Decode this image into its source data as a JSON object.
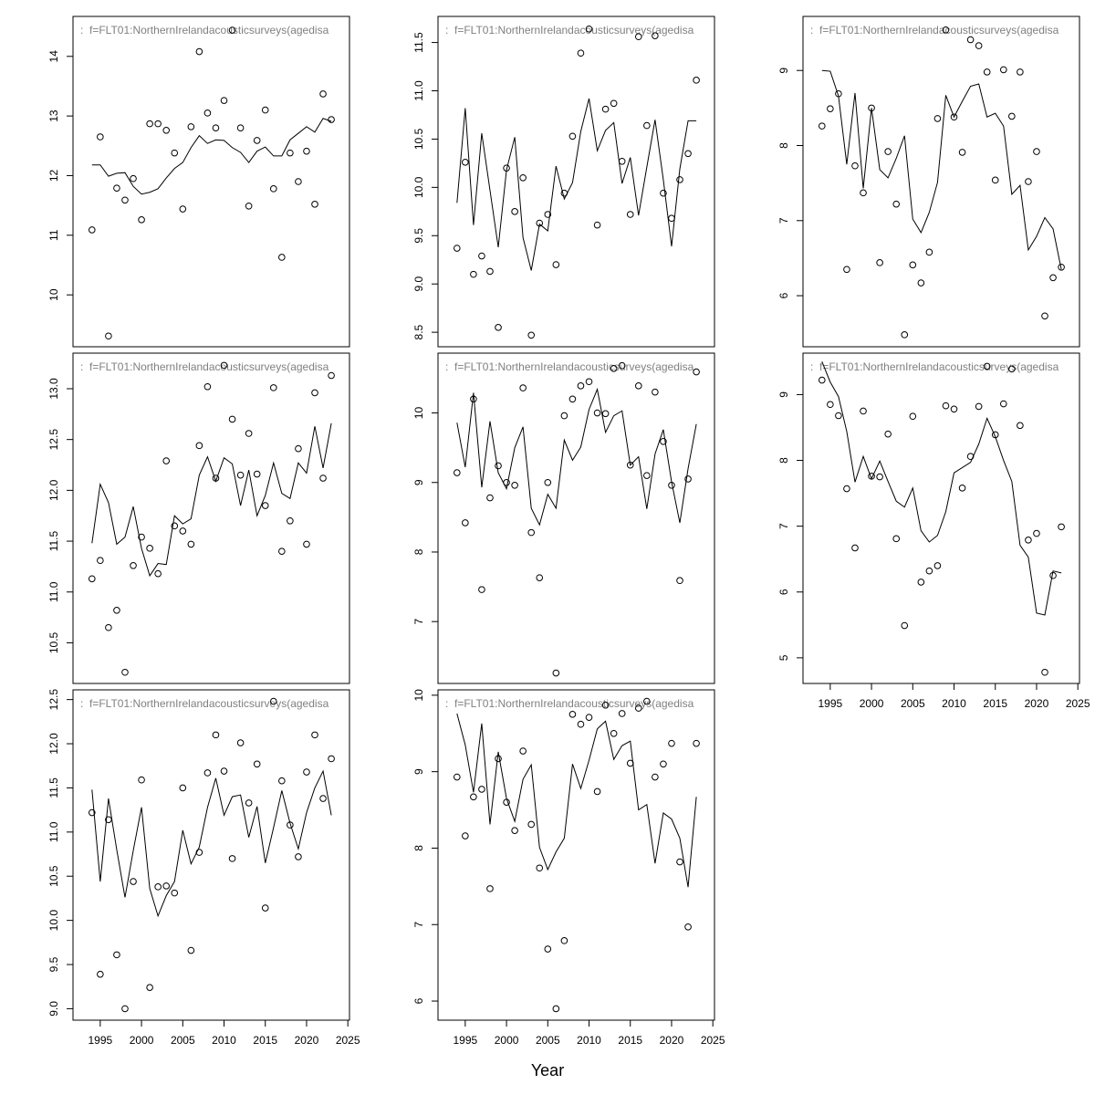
{
  "xlabel": "Year",
  "chart_data": [
    {
      "type": "line",
      "title": ":  f=FLT01:NorthernIrelandacousticsurveys(agedisa",
      "x": [
        1994,
        1995,
        1996,
        1997,
        1998,
        1999,
        2000,
        2001,
        2002,
        2003,
        2004,
        2005,
        2006,
        2007,
        2008,
        2009,
        2010,
        2011,
        2012,
        2013,
        2014,
        2015,
        2016,
        2017,
        2018,
        2019,
        2020,
        2021,
        2022,
        2023
      ],
      "xlim": [
        1991.7,
        2025.2
      ],
      "ylim": [
        9.13,
        14.67
      ],
      "yticks": [
        10,
        11,
        12,
        13,
        14
      ],
      "series": [
        {
          "style": "line",
          "color": "#000000",
          "values": [
            12.18,
            12.18,
            11.99,
            12.04,
            12.05,
            11.82,
            11.69,
            11.72,
            11.78,
            11.96,
            12.12,
            12.22,
            12.47,
            12.67,
            12.54,
            12.6,
            12.59,
            12.47,
            12.39,
            12.22,
            12.41,
            12.48,
            12.33,
            12.33,
            12.6,
            12.71,
            12.82,
            12.73,
            12.96,
            12.91
          ]
        },
        {
          "style": "points",
          "color": "#000000",
          "values": [
            11.09,
            12.65,
            9.31,
            11.79,
            11.59,
            11.95,
            11.26,
            12.87,
            12.87,
            12.76,
            12.38,
            11.44,
            12.82,
            14.08,
            13.05,
            12.8,
            13.26,
            14.44,
            12.8,
            11.49,
            12.59,
            13.1,
            11.78,
            10.63,
            12.38,
            11.9,
            12.41,
            11.52,
            13.37,
            12.94
          ]
        }
      ]
    },
    {
      "type": "line",
      "title": ":  f=FLT01:NorthernIrelandacousticsurveys(agedisa",
      "x": [
        1994,
        1995,
        1996,
        1997,
        1998,
        1999,
        2000,
        2001,
        2002,
        2003,
        2004,
        2005,
        2006,
        2007,
        2008,
        2009,
        2010,
        2011,
        2012,
        2013,
        2014,
        2015,
        2016,
        2017,
        2018,
        2019,
        2020,
        2021,
        2022,
        2023
      ],
      "xlim": [
        1991.7,
        2025.2
      ],
      "ylim": [
        8.35,
        11.77
      ],
      "yticks": [
        8.5,
        {
          "value": 9,
          "label": "9.0"
        },
        9.5,
        {
          "value": 10,
          "label": "10.0"
        },
        10.5,
        {
          "value": 11,
          "label": "11.0"
        },
        11.5
      ],
      "series": [
        {
          "style": "line",
          "color": "#000000",
          "values": [
            9.84,
            10.82,
            9.61,
            10.56,
            9.97,
            9.38,
            10.18,
            10.52,
            9.48,
            9.14,
            9.62,
            9.55,
            10.22,
            9.88,
            10.05,
            10.58,
            10.92,
            10.38,
            10.59,
            10.67,
            10.04,
            10.31,
            9.71,
            10.21,
            10.7,
            10.08,
            9.39,
            10.19,
            10.69,
            10.69
          ]
        },
        {
          "style": "points",
          "color": "#000000",
          "values": [
            9.37,
            10.26,
            9.1,
            9.29,
            9.13,
            8.55,
            10.2,
            9.75,
            10.1,
            8.47,
            9.63,
            9.72,
            9.2,
            9.94,
            10.53,
            11.39,
            11.64,
            9.61,
            10.81,
            10.87,
            10.27,
            9.72,
            11.56,
            10.64,
            11.57,
            9.94,
            9.68,
            10.08,
            10.35,
            11.11
          ]
        }
      ]
    },
    {
      "type": "line",
      "title": ":  f=FLT01:NorthernIrelandacousticsurveys(agedisa",
      "x": [
        1994,
        1995,
        1996,
        1997,
        1998,
        1999,
        2000,
        2001,
        2002,
        2003,
        2004,
        2005,
        2006,
        2007,
        2008,
        2009,
        2010,
        2011,
        2012,
        2013,
        2014,
        2015,
        2016,
        2017,
        2018,
        2019,
        2020,
        2021,
        2022,
        2023
      ],
      "xlim": [
        1991.7,
        2025.2
      ],
      "ylim": [
        5.32,
        9.72
      ],
      "yticks": [
        6,
        7,
        8,
        9
      ],
      "series": [
        {
          "style": "line",
          "color": "#000000",
          "values": [
            9.0,
            8.99,
            8.66,
            7.75,
            8.7,
            7.43,
            8.5,
            7.68,
            7.57,
            7.83,
            8.13,
            7.02,
            6.84,
            7.11,
            7.51,
            8.67,
            8.38,
            8.59,
            8.79,
            8.82,
            8.38,
            8.43,
            8.26,
            7.35,
            7.47,
            6.61,
            6.79,
            7.04,
            6.89,
            6.35
          ]
        },
        {
          "style": "points",
          "color": "#000000",
          "values": [
            8.26,
            8.49,
            8.69,
            6.35,
            7.73,
            7.37,
            8.5,
            6.44,
            7.92,
            7.22,
            5.48,
            6.41,
            6.17,
            6.58,
            8.36,
            9.54,
            8.38,
            7.91,
            9.41,
            9.33,
            8.98,
            7.54,
            9.01,
            8.39,
            8.98,
            7.52,
            7.92,
            5.73,
            6.24,
            6.38
          ]
        }
      ]
    },
    {
      "type": "line",
      "title": ":  f=FLT01:NorthernIrelandacousticsurveys(agedisa",
      "x": [
        1994,
        1995,
        1996,
        1997,
        1998,
        1999,
        2000,
        2001,
        2002,
        2003,
        2004,
        2005,
        2006,
        2007,
        2008,
        2009,
        2010,
        2011,
        2012,
        2013,
        2014,
        2015,
        2016,
        2017,
        2018,
        2019,
        2020,
        2021,
        2022,
        2023
      ],
      "xlim": [
        1991.7,
        2025.2
      ],
      "ylim": [
        10.1,
        13.35
      ],
      "yticks": [
        10.5,
        {
          "value": 11,
          "label": "11.0"
        },
        11.5,
        {
          "value": 12,
          "label": "12.0"
        },
        12.5,
        {
          "value": 13,
          "label": "13.0"
        }
      ],
      "series": [
        {
          "style": "line",
          "color": "#000000",
          "values": [
            11.48,
            12.06,
            11.88,
            11.47,
            11.54,
            11.84,
            11.43,
            11.16,
            11.28,
            11.27,
            11.75,
            11.67,
            11.72,
            12.15,
            12.33,
            12.09,
            12.32,
            12.26,
            11.85,
            12.2,
            11.75,
            11.95,
            12.27,
            11.97,
            11.92,
            12.27,
            12.17,
            12.63,
            12.22,
            12.66
          ]
        },
        {
          "style": "points",
          "color": "#000000",
          "values": [
            11.13,
            11.31,
            10.65,
            10.82,
            10.21,
            11.26,
            11.54,
            11.43,
            11.18,
            12.29,
            11.65,
            11.6,
            11.47,
            12.44,
            13.02,
            12.12,
            13.23,
            12.7,
            12.15,
            12.56,
            12.16,
            11.85,
            13.01,
            11.4,
            11.7,
            12.41,
            11.47,
            12.96,
            12.12,
            13.13
          ]
        }
      ]
    },
    {
      "type": "line",
      "title": ":  f=FLT01:NorthernIrelandacousticsurveys(agedisa",
      "x": [
        1994,
        1995,
        1996,
        1997,
        1998,
        1999,
        2000,
        2001,
        2002,
        2003,
        2004,
        2005,
        2006,
        2007,
        2008,
        2009,
        2010,
        2011,
        2012,
        2013,
        2014,
        2015,
        2016,
        2017,
        2018,
        2019,
        2020,
        2021,
        2022,
        2023
      ],
      "xlim": [
        1991.7,
        2025.2
      ],
      "ylim": [
        6.11,
        10.86
      ],
      "yticks": [
        7,
        8,
        9,
        10
      ],
      "series": [
        {
          "style": "line",
          "color": "#000000",
          "values": [
            9.86,
            9.22,
            10.29,
            8.93,
            9.88,
            9.14,
            8.91,
            9.5,
            9.8,
            8.63,
            8.39,
            8.83,
            8.63,
            9.61,
            9.32,
            9.51,
            10.05,
            10.34,
            9.72,
            9.96,
            10.03,
            9.25,
            9.37,
            8.62,
            9.41,
            9.76,
            9.01,
            8.42,
            9.2,
            9.84
          ]
        },
        {
          "style": "points",
          "color": "#000000",
          "values": [
            9.14,
            8.42,
            10.2,
            7.46,
            8.78,
            9.24,
            9.0,
            8.96,
            10.36,
            8.28,
            7.63,
            9.0,
            6.26,
            9.96,
            10.2,
            10.39,
            10.45,
            10.0,
            9.99,
            10.64,
            10.68,
            9.25,
            10.39,
            9.1,
            10.3,
            9.59,
            8.96,
            7.59,
            9.05,
            10.59
          ]
        }
      ]
    },
    {
      "type": "line",
      "title": ":  f=FLT01:NorthernIrelandacousticsurveys(agedisa",
      "x": [
        1994,
        1995,
        1996,
        1997,
        1998,
        1999,
        2000,
        2001,
        2002,
        2003,
        2004,
        2005,
        2006,
        2007,
        2008,
        2009,
        2010,
        2011,
        2012,
        2013,
        2014,
        2015,
        2016,
        2017,
        2018,
        2019,
        2020,
        2021,
        2022,
        2023
      ],
      "xlim": [
        1991.7,
        2025.2
      ],
      "xticks": [
        1995,
        2000,
        2005,
        2010,
        2015,
        2020,
        2025
      ],
      "ylim": [
        4.61,
        9.63
      ],
      "yticks": [
        5,
        6,
        7,
        8,
        9
      ],
      "series": [
        {
          "style": "line",
          "color": "#000000",
          "values": [
            9.5,
            9.19,
            8.97,
            8.44,
            7.67,
            8.06,
            7.72,
            7.99,
            7.68,
            7.38,
            7.29,
            7.58,
            6.93,
            6.76,
            6.86,
            7.22,
            7.81,
            7.89,
            7.97,
            8.25,
            8.64,
            8.36,
            8.0,
            7.68,
            6.71,
            6.53,
            5.68,
            5.65,
            6.32,
            6.29
          ]
        },
        {
          "style": "points",
          "color": "#000000",
          "values": [
            9.22,
            8.85,
            8.68,
            7.57,
            6.67,
            8.75,
            7.76,
            7.75,
            8.4,
            6.81,
            5.49,
            8.67,
            6.15,
            6.32,
            6.4,
            8.83,
            8.78,
            7.58,
            8.06,
            8.82,
            9.43,
            8.39,
            8.86,
            9.39,
            8.53,
            6.79,
            6.89,
            4.78,
            6.25,
            6.99
          ]
        }
      ]
    },
    {
      "type": "line",
      "title": ":  f=FLT01:NorthernIrelandacousticsurveys(agedisa",
      "x": [
        1994,
        1995,
        1996,
        1997,
        1998,
        1999,
        2000,
        2001,
        2002,
        2003,
        2004,
        2005,
        2006,
        2007,
        2008,
        2009,
        2010,
        2011,
        2012,
        2013,
        2014,
        2015,
        2016,
        2017,
        2018,
        2019,
        2020,
        2021,
        2022,
        2023
      ],
      "xlim": [
        1991.7,
        2025.2
      ],
      "xticks": [
        1995,
        2000,
        2005,
        2010,
        2015,
        2020,
        2025
      ],
      "ylim": [
        8.87,
        12.61
      ],
      "yticks": [
        {
          "value": 9,
          "label": "9.0"
        },
        9.5,
        {
          "value": 10,
          "label": "10.0"
        },
        10.5,
        {
          "value": 11,
          "label": "11.0"
        },
        11.5,
        {
          "value": 12,
          "label": "12.0"
        },
        12.5
      ],
      "series": [
        {
          "style": "line",
          "color": "#000000",
          "values": [
            11.48,
            10.44,
            11.38,
            10.8,
            10.26,
            10.79,
            11.28,
            10.36,
            10.05,
            10.28,
            10.44,
            11.02,
            10.64,
            10.83,
            11.28,
            11.61,
            11.19,
            11.4,
            11.42,
            10.94,
            11.29,
            10.65,
            11.05,
            11.47,
            11.1,
            10.81,
            11.22,
            11.5,
            11.69,
            11.19
          ]
        },
        {
          "style": "points",
          "color": "#000000",
          "values": [
            11.22,
            9.39,
            11.14,
            9.61,
            9.0,
            10.44,
            11.59,
            9.24,
            10.38,
            10.39,
            10.31,
            11.5,
            9.66,
            10.77,
            11.67,
            12.1,
            11.69,
            10.7,
            12.01,
            11.33,
            11.77,
            10.14,
            12.48,
            11.58,
            11.08,
            10.72,
            11.68,
            12.1,
            11.38,
            11.83
          ]
        }
      ]
    },
    {
      "type": "line",
      "title": ":  f=FLT01:NorthernIrelandacousticsurveys(agedisa",
      "x": [
        1994,
        1995,
        1996,
        1997,
        1998,
        1999,
        2000,
        2001,
        2002,
        2003,
        2004,
        2005,
        2006,
        2007,
        2008,
        2009,
        2010,
        2011,
        2012,
        2013,
        2014,
        2015,
        2016,
        2017,
        2018,
        2019,
        2020,
        2021,
        2022,
        2023
      ],
      "xlim": [
        1991.7,
        2025.2
      ],
      "xticks": [
        1995,
        2000,
        2005,
        2010,
        2015,
        2020,
        2025
      ],
      "ylim": [
        5.75,
        10.07
      ],
      "yticks": [
        6,
        7,
        8,
        9,
        10
      ],
      "series": [
        {
          "style": "line",
          "color": "#000000",
          "values": [
            9.76,
            9.35,
            8.73,
            9.63,
            8.31,
            9.26,
            8.65,
            8.35,
            8.9,
            9.09,
            8.01,
            7.72,
            7.95,
            8.13,
            9.1,
            8.78,
            9.15,
            9.56,
            9.66,
            9.16,
            9.34,
            9.4,
            8.5,
            8.57,
            7.8,
            8.46,
            8.38,
            8.13,
            7.49,
            8.67
          ]
        },
        {
          "style": "points",
          "color": "#000000",
          "values": [
            8.93,
            8.16,
            8.67,
            8.77,
            7.47,
            9.17,
            8.6,
            8.23,
            9.27,
            8.31,
            7.74,
            6.68,
            5.9,
            6.79,
            9.75,
            9.62,
            9.71,
            8.74,
            9.87,
            9.5,
            9.76,
            9.11,
            9.83,
            9.92,
            8.93,
            9.1,
            9.37,
            7.82,
            6.97,
            9.37
          ]
        }
      ]
    }
  ]
}
